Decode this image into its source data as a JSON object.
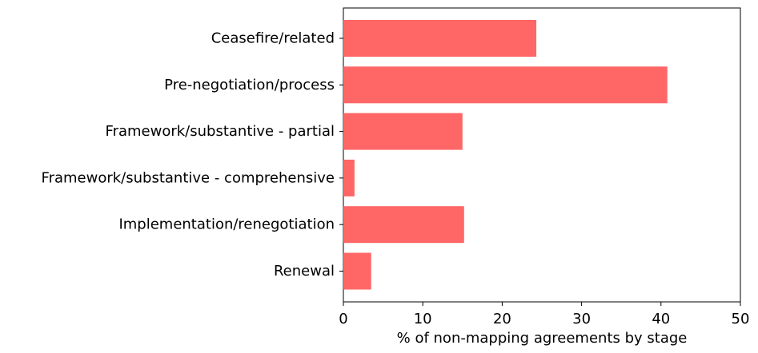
{
  "chart_data": {
    "type": "bar",
    "orientation": "horizontal",
    "categories": [
      "Ceasefire/related",
      "Pre-negotiation/process",
      "Framework/substantive - partial",
      "Framework/substantive - comprehensive",
      "Implementation/renegotiation",
      "Renewal"
    ],
    "values": [
      24.3,
      40.8,
      15.0,
      1.4,
      15.2,
      3.5
    ],
    "xlabel": "% of non-mapping agreements by stage",
    "ylabel": "",
    "title": "",
    "xlim": [
      0,
      50
    ],
    "xticks": [
      "0",
      "10",
      "20",
      "30",
      "40",
      "50"
    ],
    "grid": false,
    "bar_color": "#ff6666"
  }
}
